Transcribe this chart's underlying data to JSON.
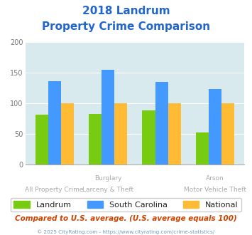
{
  "title_line1": "2018 Landrum",
  "title_line2": "Property Crime Comparison",
  "landrum": [
    82,
    83,
    88,
    53
  ],
  "south_carolina": [
    136,
    155,
    135,
    123
  ],
  "national": [
    100,
    100,
    100,
    100
  ],
  "color_landrum": "#77cc11",
  "color_sc": "#4499ff",
  "color_national": "#ffbb33",
  "ylim": [
    0,
    200
  ],
  "yticks": [
    0,
    50,
    100,
    150,
    200
  ],
  "background_color": "#d8eaee",
  "title_color": "#2266cc",
  "top_labels": [
    "",
    "Burglary",
    "",
    "Arson"
  ],
  "bot_labels": [
    "All Property Crime",
    "Larceny & Theft",
    "",
    "Motor Vehicle Theft"
  ],
  "footer_text": "Compared to U.S. average. (U.S. average equals 100)",
  "footer_color": "#cc4400",
  "copyright_text": "© 2025 CityRating.com - https://www.cityrating.com/crime-statistics/",
  "copyright_color": "#7799bb",
  "legend_labels": [
    "Landrum",
    "South Carolina",
    "National"
  ]
}
